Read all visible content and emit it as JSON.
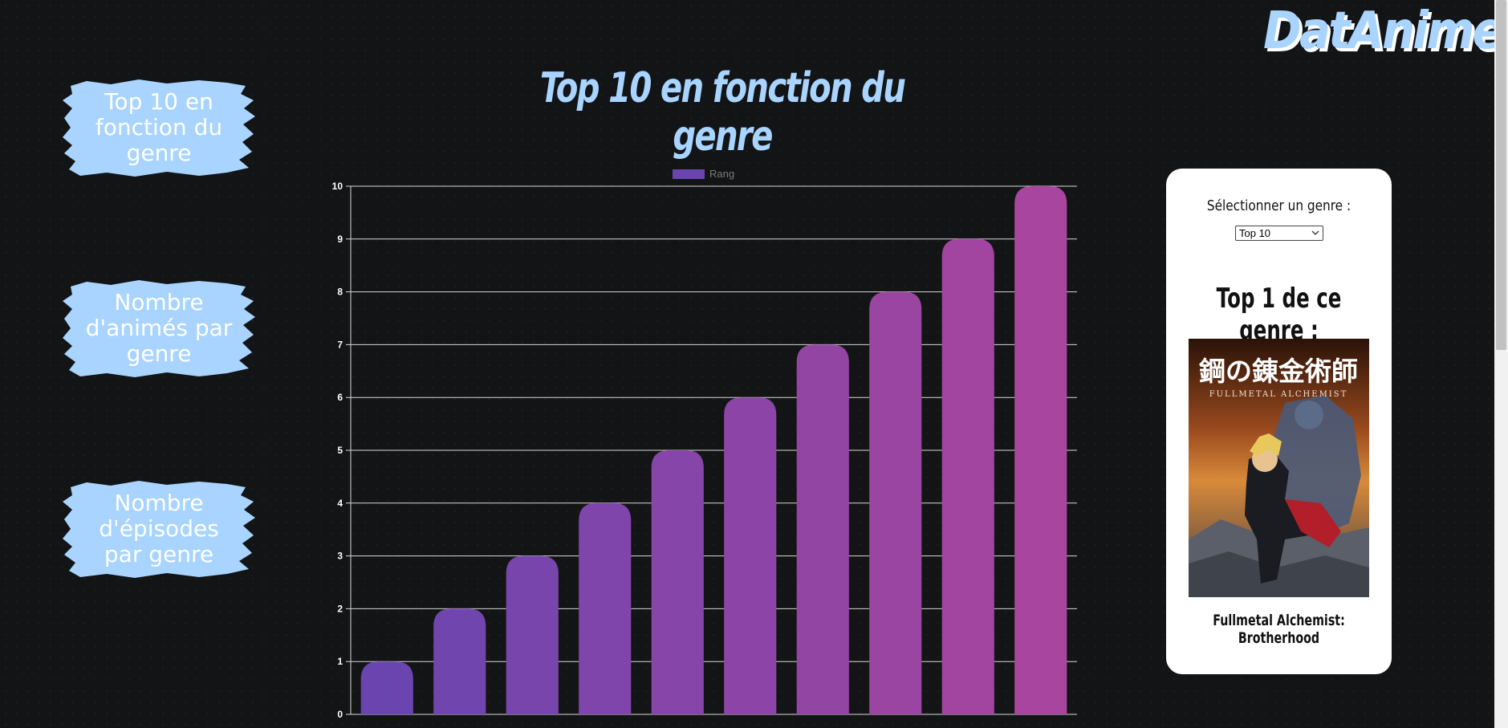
{
  "app": {
    "logo": "DatAnimes"
  },
  "nav": {
    "items": [
      {
        "label": "Top 10 en fonction du genre"
      },
      {
        "label": "Nombre d'animés par genre"
      },
      {
        "label": "Nombre d'épisodes par genre"
      }
    ]
  },
  "main": {
    "title": "Top 10 en fonction du genre"
  },
  "panel": {
    "select_label": "Sélectionner un genre :",
    "select_value": "Top 10",
    "top1_title": "Top 1 de ce genre :",
    "poster_title_jp": "鋼の錬金術師",
    "poster_title_en": "FULLMETAL ALCHEMIST",
    "anime_name": "Fullmetal Alchemist: Brotherhood"
  },
  "colors": {
    "accent": "#a8d4ff",
    "bar_start": "#6a45b0",
    "bar_end": "#a8459e",
    "background": "#131415"
  },
  "chart_data": {
    "type": "bar",
    "categories": [
      "",
      "",
      "",
      "",
      "",
      "",
      "",
      "",
      "",
      ""
    ],
    "series": [
      {
        "name": "Rang",
        "values": [
          1,
          2,
          3,
          4,
          5,
          6,
          7,
          8,
          9,
          10
        ]
      }
    ],
    "ylim": [
      0,
      10
    ],
    "yticks": [
      "0",
      "1",
      "2",
      "3",
      "4",
      "5",
      "6",
      "7",
      "8",
      "9",
      "10"
    ],
    "grid": true,
    "legend": "top-center"
  }
}
